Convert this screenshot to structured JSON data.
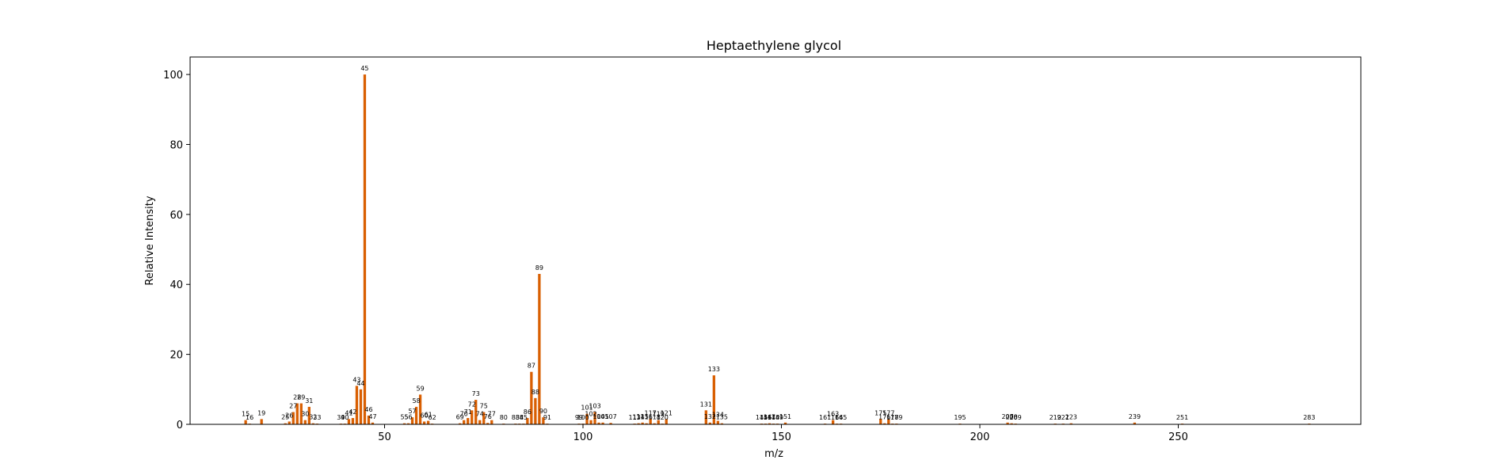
{
  "chart_data": {
    "type": "bar",
    "title": "Heptaethylene glycol",
    "xlabel": "m/z",
    "ylabel": "Relative Intensity",
    "xlim": [
      1,
      296
    ],
    "ylim": [
      0,
      105
    ],
    "x_ticks": [
      50,
      100,
      150,
      200,
      250
    ],
    "y_ticks": [
      0,
      20,
      40,
      60,
      80,
      100
    ],
    "grid": false,
    "bar_color": "#d95f02",
    "peaks": [
      {
        "mz": 15,
        "intensity": 1.2
      },
      {
        "mz": 16,
        "intensity": 0.2
      },
      {
        "mz": 19,
        "intensity": 1.5
      },
      {
        "mz": 25,
        "intensity": 0.3
      },
      {
        "mz": 26,
        "intensity": 0.8
      },
      {
        "mz": 27,
        "intensity": 3.5
      },
      {
        "mz": 28,
        "intensity": 6.0
      },
      {
        "mz": 29,
        "intensity": 6.0
      },
      {
        "mz": 30,
        "intensity": 1.2
      },
      {
        "mz": 31,
        "intensity": 5.0
      },
      {
        "mz": 32,
        "intensity": 0.3
      },
      {
        "mz": 33,
        "intensity": 0.2
      },
      {
        "mz": 39,
        "intensity": 0.2
      },
      {
        "mz": 40,
        "intensity": 0.2
      },
      {
        "mz": 41,
        "intensity": 1.5
      },
      {
        "mz": 42,
        "intensity": 1.8
      },
      {
        "mz": 43,
        "intensity": 11.0
      },
      {
        "mz": 44,
        "intensity": 10.0
      },
      {
        "mz": 45,
        "intensity": 100
      },
      {
        "mz": 46,
        "intensity": 2.5
      },
      {
        "mz": 47,
        "intensity": 0.5
      },
      {
        "mz": 55,
        "intensity": 0.3
      },
      {
        "mz": 56,
        "intensity": 0.3
      },
      {
        "mz": 57,
        "intensity": 2.0
      },
      {
        "mz": 58,
        "intensity": 5.0
      },
      {
        "mz": 59,
        "intensity": 8.5
      },
      {
        "mz": 60,
        "intensity": 0.8
      },
      {
        "mz": 61,
        "intensity": 1.0
      },
      {
        "mz": 62,
        "intensity": 0.2
      },
      {
        "mz": 69,
        "intensity": 0.3
      },
      {
        "mz": 70,
        "intensity": 1.2
      },
      {
        "mz": 71,
        "intensity": 1.8
      },
      {
        "mz": 72,
        "intensity": 4.0
      },
      {
        "mz": 73,
        "intensity": 7.0
      },
      {
        "mz": 74,
        "intensity": 1.2
      },
      {
        "mz": 75,
        "intensity": 3.5
      },
      {
        "mz": 76,
        "intensity": 0.4
      },
      {
        "mz": 77,
        "intensity": 1.2
      },
      {
        "mz": 80,
        "intensity": 0.2
      },
      {
        "mz": 83,
        "intensity": 0.2
      },
      {
        "mz": 84,
        "intensity": 0.2
      },
      {
        "mz": 85,
        "intensity": 0.2
      },
      {
        "mz": 86,
        "intensity": 1.8
      },
      {
        "mz": 87,
        "intensity": 15.0
      },
      {
        "mz": 88,
        "intensity": 7.5
      },
      {
        "mz": 89,
        "intensity": 43.0
      },
      {
        "mz": 90,
        "intensity": 2.0
      },
      {
        "mz": 91,
        "intensity": 0.2
      },
      {
        "mz": 99,
        "intensity": 0.2
      },
      {
        "mz": 100,
        "intensity": 0.2
      },
      {
        "mz": 101,
        "intensity": 3.0
      },
      {
        "mz": 102,
        "intensity": 1.2
      },
      {
        "mz": 103,
        "intensity": 3.5
      },
      {
        "mz": 104,
        "intensity": 0.5
      },
      {
        "mz": 105,
        "intensity": 0.5
      },
      {
        "mz": 107,
        "intensity": 0.4
      },
      {
        "mz": 113,
        "intensity": 0.2
      },
      {
        "mz": 114,
        "intensity": 0.3
      },
      {
        "mz": 115,
        "intensity": 0.5
      },
      {
        "mz": 116,
        "intensity": 0.3
      },
      {
        "mz": 117,
        "intensity": 1.5
      },
      {
        "mz": 118,
        "intensity": 0.3
      },
      {
        "mz": 119,
        "intensity": 1.2
      },
      {
        "mz": 120,
        "intensity": 0.2
      },
      {
        "mz": 121,
        "intensity": 1.5
      },
      {
        "mz": 131,
        "intensity": 4.0
      },
      {
        "mz": 132,
        "intensity": 0.5
      },
      {
        "mz": 133,
        "intensity": 14.0
      },
      {
        "mz": 134,
        "intensity": 1.0
      },
      {
        "mz": 135,
        "intensity": 0.3
      },
      {
        "mz": 145,
        "intensity": 0.2
      },
      {
        "mz": 146,
        "intensity": 0.2
      },
      {
        "mz": 147,
        "intensity": 0.3
      },
      {
        "mz": 148,
        "intensity": 0.2
      },
      {
        "mz": 149,
        "intensity": 0.2
      },
      {
        "mz": 151,
        "intensity": 0.5
      },
      {
        "mz": 161,
        "intensity": 0.2
      },
      {
        "mz": 163,
        "intensity": 1.2
      },
      {
        "mz": 164,
        "intensity": 0.2
      },
      {
        "mz": 165,
        "intensity": 0.2
      },
      {
        "mz": 175,
        "intensity": 1.5
      },
      {
        "mz": 176,
        "intensity": 0.3
      },
      {
        "mz": 177,
        "intensity": 1.5
      },
      {
        "mz": 178,
        "intensity": 0.2
      },
      {
        "mz": 179,
        "intensity": 0.2
      },
      {
        "mz": 195,
        "intensity": 0.2
      },
      {
        "mz": 207,
        "intensity": 0.5
      },
      {
        "mz": 208,
        "intensity": 0.3
      },
      {
        "mz": 209,
        "intensity": 0.2
      },
      {
        "mz": 219,
        "intensity": 0.2
      },
      {
        "mz": 221,
        "intensity": 0.2
      },
      {
        "mz": 223,
        "intensity": 0.3
      },
      {
        "mz": 239,
        "intensity": 0.5
      },
      {
        "mz": 251,
        "intensity": 0.2
      },
      {
        "mz": 283,
        "intensity": 0.2
      }
    ]
  }
}
